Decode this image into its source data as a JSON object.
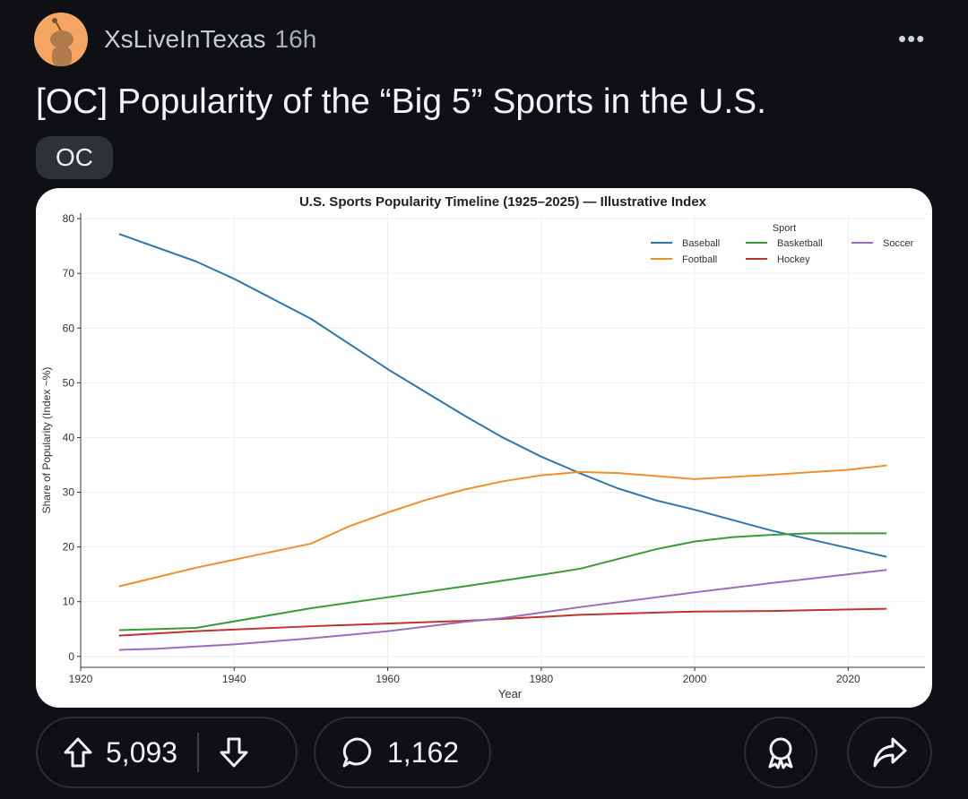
{
  "post": {
    "username": "XsLiveInTexas",
    "time": "16h",
    "title": "[OC] Popularity of the “Big 5” Sports in the U.S.",
    "flair": "OC",
    "more_label": "•••"
  },
  "actions": {
    "upvotes": "5,093",
    "comments": "1,162"
  },
  "chart_data": {
    "type": "line",
    "title": "U.S. Sports Popularity Timeline (1925–2025) — Illustrative Index",
    "xlabel": "Year",
    "ylabel": "Share of Popularity (Index ~%)",
    "xlim": [
      1920,
      2030
    ],
    "ylim": [
      -2,
      81
    ],
    "xticks": [
      1920,
      1940,
      1960,
      1980,
      2000,
      2020
    ],
    "yticks": [
      0,
      10,
      20,
      30,
      40,
      50,
      60,
      70,
      80
    ],
    "grid": true,
    "legend": {
      "title": "Sport",
      "placement": "top-right"
    },
    "series": [
      {
        "name": "Baseball",
        "color": "#2f76ad",
        "points": [
          [
            1925,
            77.2
          ],
          [
            1935,
            72.2
          ],
          [
            1940,
            69
          ],
          [
            1950,
            61.7
          ],
          [
            1960,
            52.5
          ],
          [
            1970,
            44
          ],
          [
            1975,
            40
          ],
          [
            1980,
            36.5
          ],
          [
            1985,
            33.5
          ],
          [
            1990,
            30.7
          ],
          [
            1995,
            28.5
          ],
          [
            2000,
            26.8
          ],
          [
            2010,
            23
          ],
          [
            2020,
            19.8
          ],
          [
            2025,
            18.2
          ]
        ]
      },
      {
        "name": "Football",
        "color": "#ef8f2f",
        "points": [
          [
            1925,
            12.8
          ],
          [
            1935,
            16.2
          ],
          [
            1950,
            20.6
          ],
          [
            1955,
            23.8
          ],
          [
            1960,
            26.3
          ],
          [
            1965,
            28.6
          ],
          [
            1970,
            30.5
          ],
          [
            1975,
            32
          ],
          [
            1980,
            33.1
          ],
          [
            1985,
            33.7
          ],
          [
            1990,
            33.5
          ],
          [
            2000,
            32.4
          ],
          [
            2010,
            33.2
          ],
          [
            2020,
            34.1
          ],
          [
            2025,
            34.9
          ]
        ]
      },
      {
        "name": "Basketball",
        "color": "#3a9a3a",
        "points": [
          [
            1925,
            4.8
          ],
          [
            1935,
            5.2
          ],
          [
            1950,
            8.8
          ],
          [
            1960,
            10.8
          ],
          [
            1970,
            12.8
          ],
          [
            1980,
            14.9
          ],
          [
            1985,
            16
          ],
          [
            1990,
            17.8
          ],
          [
            1995,
            19.6
          ],
          [
            2000,
            21
          ],
          [
            2005,
            21.8
          ],
          [
            2010,
            22.2
          ],
          [
            2015,
            22.5
          ],
          [
            2025,
            22.5
          ]
        ]
      },
      {
        "name": "Hockey",
        "color": "#c0332f",
        "points": [
          [
            1925,
            3.8
          ],
          [
            1935,
            4.6
          ],
          [
            1950,
            5.5
          ],
          [
            1960,
            6.0
          ],
          [
            1970,
            6.5
          ],
          [
            1980,
            7.2
          ],
          [
            1985,
            7.6
          ],
          [
            1990,
            7.8
          ],
          [
            2000,
            8.2
          ],
          [
            2010,
            8.3
          ],
          [
            2025,
            8.7
          ]
        ]
      },
      {
        "name": "Soccer",
        "color": "#9a6cc0",
        "points": [
          [
            1925,
            1.2
          ],
          [
            1930,
            1.4
          ],
          [
            1935,
            1.8
          ],
          [
            1940,
            2.2
          ],
          [
            1950,
            3.3
          ],
          [
            1960,
            4.6
          ],
          [
            1970,
            6.3
          ],
          [
            1975,
            7
          ],
          [
            1980,
            8
          ],
          [
            1985,
            9
          ],
          [
            1990,
            9.9
          ],
          [
            2000,
            11.7
          ],
          [
            2010,
            13.4
          ],
          [
            2020,
            15
          ],
          [
            2025,
            15.8
          ]
        ]
      }
    ]
  }
}
